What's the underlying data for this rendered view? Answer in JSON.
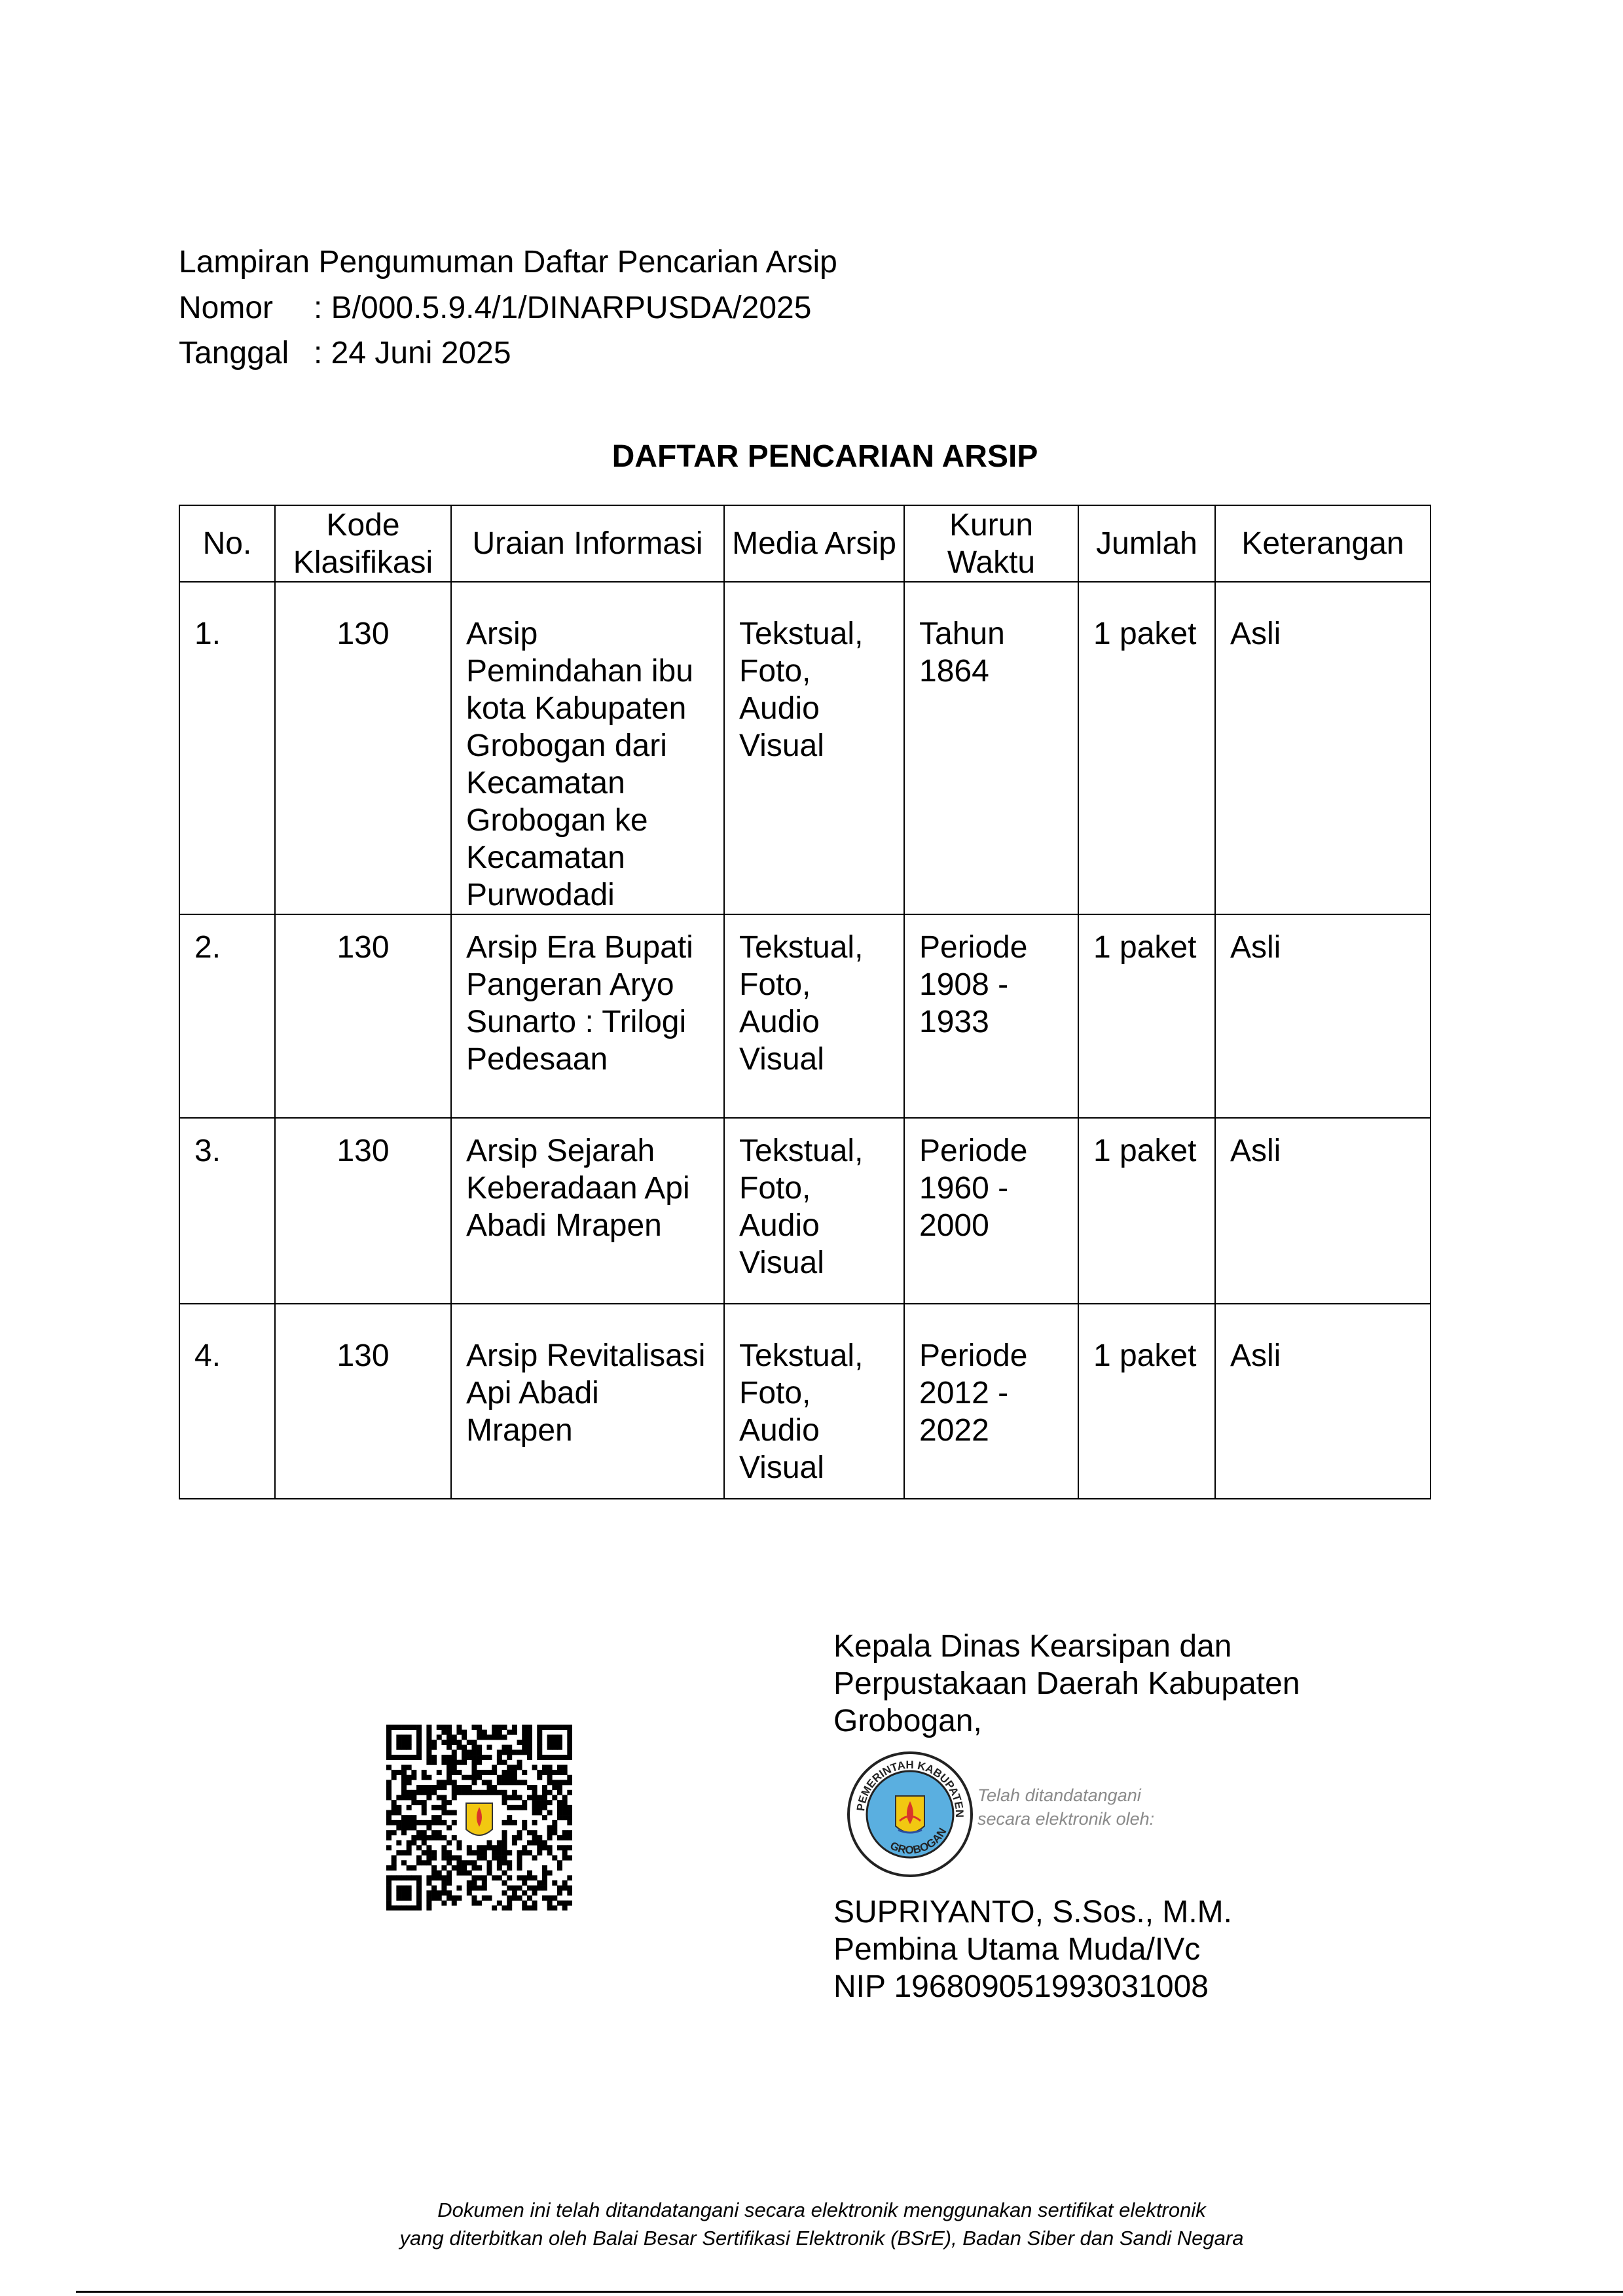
{
  "header": {
    "line1": "Lampiran Pengumuman Daftar Pencarian Arsip",
    "nomor_label": "Nomor",
    "nomor_value": ": B/000.5.9.4/1/DINARPUSDA/2025",
    "tanggal_label": "Tanggal",
    "tanggal_value": ": 24 Juni 2025"
  },
  "title": "DAFTAR PENCARIAN ARSIP",
  "table": {
    "columns": [
      "No.",
      "Kode Klasifikasi",
      "Uraian Informasi",
      "Media Arsip",
      "Kurun Waktu",
      "Jumlah",
      "Keterangan"
    ],
    "rows": [
      {
        "no": "1.",
        "kode": "130",
        "uraian": "Arsip Pemindahan ibu kota Kabupaten Grobogan dari Kecamatan Grobogan ke Kecamatan Purwodadi",
        "media": "Tekstual, Foto, Audio Visual",
        "kurun": "Tahun 1864",
        "jumlah": "1 paket",
        "keterangan": "Asli"
      },
      {
        "no": "2.",
        "kode": "130",
        "uraian": "Arsip Era Bupati Pangeran Aryo Sunarto : Trilogi Pedesaan",
        "media": "Tekstual, Foto, Audio Visual",
        "kurun": "Periode 1908 - 1933",
        "jumlah": "1 paket",
        "keterangan": "Asli"
      },
      {
        "no": "3.",
        "kode": "130",
        "uraian": "Arsip Sejarah Keberadaan Api Abadi Mrapen",
        "media": "Tekstual, Foto, Audio Visual",
        "kurun": "Periode 1960 - 2000",
        "jumlah": "1 paket",
        "keterangan": "Asli"
      },
      {
        "no": "4.",
        "kode": "130",
        "uraian": "Arsip Revitalisasi Api Abadi Mrapen",
        "media": "Tekstual, Foto, Audio Visual",
        "kurun": "Periode 2012 - 2022",
        "jumlah": "1 paket",
        "keterangan": "Asli"
      }
    ]
  },
  "signature": {
    "position_line1": "Kepala Dinas Kearsipan dan",
    "position_line2": "Perpustakaan Daerah Kabupaten",
    "position_line3": "Grobogan,",
    "stamp_line1": "Telah ditandatangani",
    "stamp_line2": "secara elektronik oleh:",
    "seal_text_top": "PEMERINTAH KABUPATEN",
    "seal_text_bottom": "GROBOGAN",
    "name": "SUPRIYANTO, S.Sos., M.M.",
    "rank": "Pembina Utama Muda/IVc",
    "nip": "NIP 196809051993031008"
  },
  "footer": {
    "line1": "Dokumen ini telah ditandatangani secara elektronik menggunakan sertifikat elektronik",
    "line2": "yang diterbitkan oleh Balai Besar Sertifikasi Elektronik (BSrE), Badan Siber dan Sandi Negara"
  },
  "colors": {
    "seal_blue": "#5aafe0",
    "emblem_yellow": "#f2c811",
    "emblem_red": "#d9352a"
  }
}
